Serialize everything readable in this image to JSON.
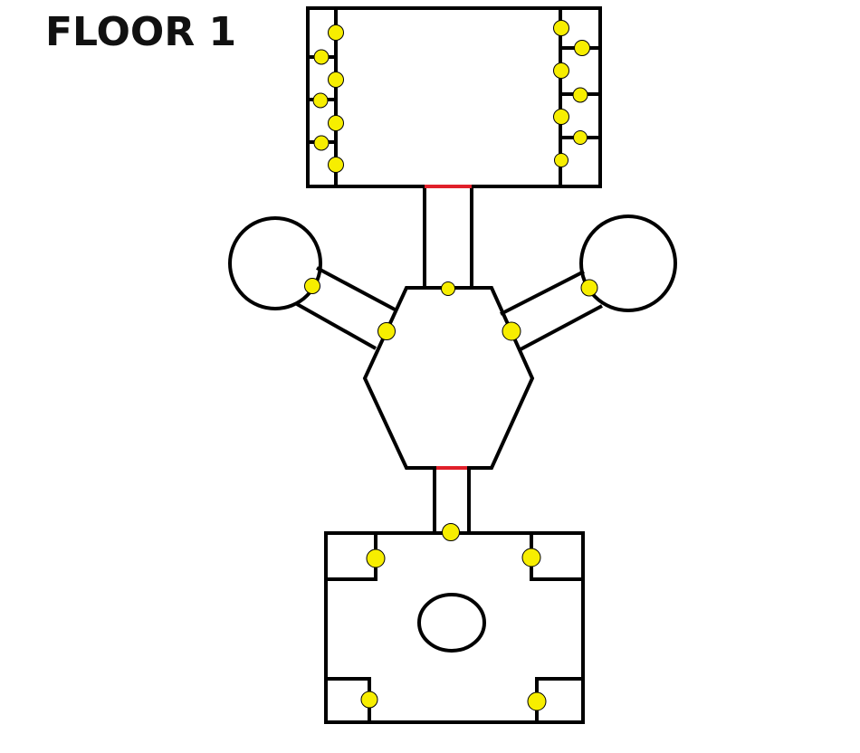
{
  "title": "FLOOR 1",
  "colors": {
    "wall": "#000000",
    "door": "#e0202a",
    "marker": "#f7ee00",
    "background": "#ffffff"
  }
}
